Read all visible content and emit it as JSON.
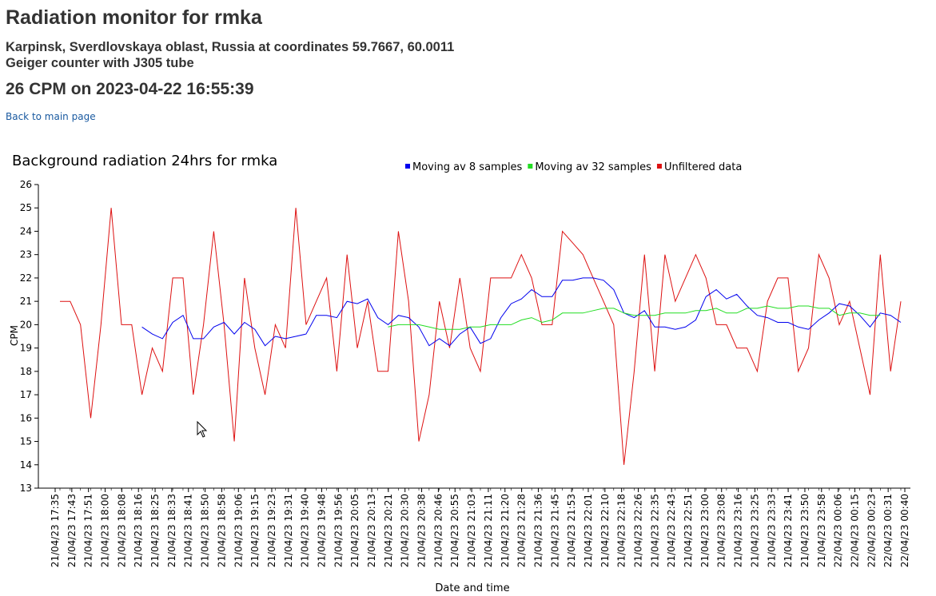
{
  "page": {
    "title": "Radiation monitor for rmka",
    "location": "Karpinsk, Sverdlovskaya oblast, Russia at coordinates 59.7667, 60.0011",
    "device": "Geiger counter with J305 tube",
    "current_reading": "26 CPM on 2023-04-22 16:55:39",
    "back_link": "Back to main page"
  },
  "chart_data": {
    "type": "line",
    "title": "Background radiation 24hrs for rmka",
    "xlabel": "Date and time",
    "ylabel": "CPM",
    "ylim": [
      13,
      26
    ],
    "yticks": [
      13,
      14,
      15,
      16,
      17,
      18,
      19,
      20,
      21,
      22,
      23,
      24,
      25,
      26
    ],
    "legend_position": "top",
    "x_tick_labels": [
      "21/04/23 17:35",
      "21/04/23 17:43",
      "21/04/23 17:51",
      "21/04/23 18:00",
      "21/04/23 18:08",
      "21/04/23 18:16",
      "21/04/23 18:25",
      "21/04/23 18:33",
      "21/04/23 18:41",
      "21/04/23 18:50",
      "21/04/23 18:58",
      "21/04/23 19:06",
      "21/04/23 19:15",
      "21/04/23 19:23",
      "21/04/23 19:31",
      "21/04/23 19:40",
      "21/04/23 19:48",
      "21/04/23 19:56",
      "21/04/23 20:05",
      "21/04/23 20:13",
      "21/04/23 20:21",
      "21/04/23 20:30",
      "21/04/23 20:38",
      "21/04/23 20:46",
      "21/04/23 20:55",
      "21/04/23 21:03",
      "21/04/23 21:11",
      "21/04/23 21:20",
      "21/04/23 21:28",
      "21/04/23 21:36",
      "21/04/23 21:45",
      "21/04/23 21:53",
      "21/04/23 22:01",
      "21/04/23 22:10",
      "21/04/23 22:18",
      "21/04/23 22:26",
      "21/04/23 22:35",
      "21/04/23 22:43",
      "21/04/23 22:51",
      "21/04/23 23:00",
      "21/04/23 23:08",
      "21/04/23 23:16",
      "21/04/23 23:25",
      "21/04/23 23:33",
      "21/04/23 23:41",
      "21/04/23 23:50",
      "21/04/23 23:58",
      "22/04/23 00:06",
      "22/04/23 00:15",
      "22/04/23 00:23",
      "22/04/23 00:31",
      "22/04/23 00:40"
    ],
    "series": [
      {
        "name": "Moving av 8 samples",
        "color": "#0000ee",
        "offset": 8,
        "values": [
          19.9,
          19.6,
          19.4,
          20.1,
          20.4,
          19.4,
          19.4,
          19.9,
          20.1,
          19.6,
          20.1,
          19.8,
          19.1,
          19.5,
          19.4,
          19.5,
          19.6,
          20.4,
          20.4,
          20.3,
          21.0,
          20.9,
          21.1,
          20.3,
          20.0,
          20.4,
          20.3,
          19.9,
          19.1,
          19.4,
          19.1,
          19.6,
          19.9,
          19.2,
          19.4,
          20.3,
          20.9,
          21.1,
          21.5,
          21.2,
          21.2,
          21.9,
          21.9,
          22.0,
          22.0,
          21.9,
          21.5,
          20.5,
          20.3,
          20.6,
          19.9,
          19.9,
          19.8,
          19.9,
          20.2,
          21.2,
          21.5,
          21.1,
          21.3,
          20.8,
          20.4,
          20.3,
          20.1,
          20.1,
          19.9,
          19.8,
          20.2,
          20.5,
          20.9,
          20.8,
          20.4,
          19.9,
          20.5,
          20.4,
          20.1
        ]
      },
      {
        "name": "Moving av 32 samples",
        "color": "#22dd22",
        "offset": 32,
        "values": [
          19.9,
          20.0,
          20.0,
          20.0,
          19.9,
          19.8,
          19.8,
          19.8,
          19.9,
          19.9,
          20.0,
          20.0,
          20.0,
          20.2,
          20.3,
          20.1,
          20.2,
          20.5,
          20.5,
          20.5,
          20.6,
          20.7,
          20.7,
          20.5,
          20.4,
          20.4,
          20.4,
          20.5,
          20.5,
          20.5,
          20.6,
          20.6,
          20.7,
          20.5,
          20.5,
          20.7,
          20.7,
          20.8,
          20.7,
          20.7,
          20.8,
          20.8,
          20.7,
          20.7,
          20.4,
          20.5,
          20.5,
          20.4,
          20.4
        ]
      },
      {
        "name": "Unfiltered data",
        "color": "#dd1111",
        "offset": 0,
        "values": [
          21,
          21,
          20,
          16,
          20,
          25,
          20,
          20,
          17,
          19,
          18,
          22,
          22,
          17,
          20,
          24,
          20,
          15,
          22,
          19,
          17,
          20,
          19,
          25,
          20,
          21,
          22,
          18,
          23,
          19,
          21,
          18,
          18,
          24,
          21,
          15,
          17,
          21,
          19,
          22,
          19,
          18,
          22,
          22,
          22,
          23,
          22,
          20,
          20,
          24,
          23.5,
          23,
          22,
          21,
          20,
          14,
          18,
          23,
          18,
          23,
          21,
          22,
          23,
          22,
          20,
          20,
          19,
          19,
          18,
          21,
          22,
          22,
          18,
          19,
          23,
          22,
          20,
          21,
          19,
          17,
          23,
          18,
          21
        ]
      }
    ]
  }
}
